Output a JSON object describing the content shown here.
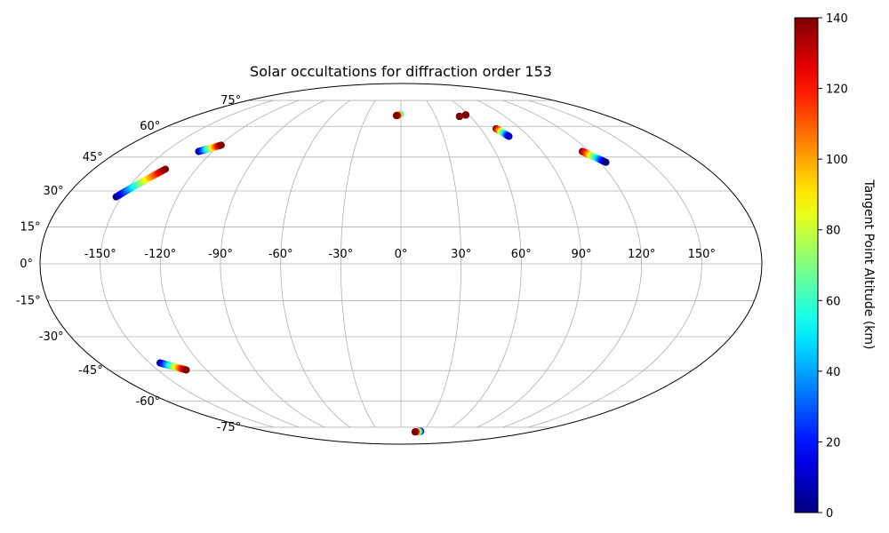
{
  "chart_data": {
    "type": "scatter",
    "projection": "mollweide",
    "title": "Solar occultations for diffraction order 153",
    "xlim": [
      -180,
      180
    ],
    "ylim": [
      -90,
      90
    ],
    "lon_ticks": [
      -150,
      -120,
      -90,
      -60,
      -30,
      0,
      30,
      60,
      90,
      120,
      150
    ],
    "lon_tick_labels": [
      "-150°",
      "-120°",
      "-90°",
      "-60°",
      "-30°",
      "0°",
      "30°",
      "60°",
      "90°",
      "120°",
      "150°"
    ],
    "lat_ticks": [
      -75,
      -60,
      -45,
      -30,
      -15,
      0,
      15,
      30,
      45,
      60,
      75
    ],
    "lat_tick_labels": [
      "-75°",
      "-60°",
      "-45°",
      "-30°",
      "-15°",
      "0°",
      "15°",
      "30°",
      "45°",
      "60°",
      "75°"
    ],
    "grid": true,
    "colorbar": {
      "label": "Tangent Point Altitude (km)",
      "colormap": "jet",
      "range": [
        0,
        140
      ],
      "ticks": [
        0,
        20,
        40,
        60,
        80,
        100,
        120,
        140
      ],
      "tick_labels": [
        "0",
        "20",
        "40",
        "60",
        "80",
        "100",
        "120",
        "140"
      ]
    },
    "tracks": [
      {
        "lon_start": -129,
        "lat_start": 47.6,
        "lon_end": -119,
        "lat_end": 50.6,
        "alt_start": 0,
        "alt_end": 140
      },
      {
        "lon_start": -153,
        "lat_start": 27.5,
        "lon_end": -138,
        "lat_end": 39.5,
        "alt_start": 0,
        "alt_end": 140
      },
      {
        "lon_start": -0.5,
        "lat_start": 66.5,
        "lon_end": -4,
        "lat_end": 65.8,
        "alt_start": 45,
        "alt_end": 140
      },
      {
        "lon_start": 57.3,
        "lat_start": 66.2,
        "lon_end": 57.3,
        "lat_end": 66.2,
        "alt_start": 130,
        "alt_end": 140
      },
      {
        "lon_start": 50.8,
        "lat_start": 65.4,
        "lon_end": 50.8,
        "lat_end": 65.4,
        "alt_start": 120,
        "alt_end": 140
      },
      {
        "lon_start": 71.7,
        "lat_start": 58.8,
        "lon_end": 76.2,
        "lat_end": 54.9,
        "alt_start": 140,
        "alt_end": 10
      },
      {
        "lon_start": 115.6,
        "lat_start": 47.6,
        "lon_end": 123.7,
        "lat_end": 42.6,
        "alt_start": 140,
        "alt_end": 0
      },
      {
        "lon_start": -143.8,
        "lat_start": -41.5,
        "lon_end": -132.4,
        "lat_end": -44.7,
        "alt_start": 0,
        "alt_end": 140
      },
      {
        "lon_start": 26.6,
        "lat_start": -77.8,
        "lon_end": 19.2,
        "lat_end": -78.2,
        "alt_start": 0,
        "alt_end": 140
      }
    ]
  }
}
